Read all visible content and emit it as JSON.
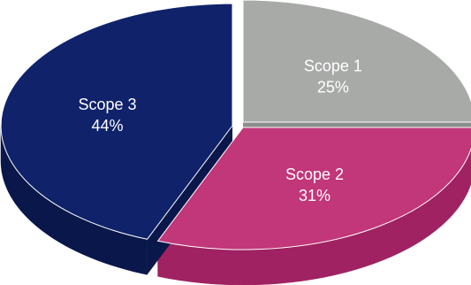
{
  "chart_data": {
    "type": "pie",
    "title": "",
    "slices": [
      {
        "label": "Scope 1",
        "value": 25,
        "value_label": "25%",
        "color": "#A8AAA8",
        "side_color": "#8C8E8C"
      },
      {
        "label": "Scope 2",
        "value": 31,
        "value_label": "31%",
        "color": "#C2367A",
        "side_color": "#A02262"
      },
      {
        "label": "Scope 3",
        "value": 44,
        "value_label": "44%",
        "color": "#10226A",
        "side_color": "#0A174A"
      }
    ],
    "legend": "none",
    "style": "3d-exploded"
  }
}
